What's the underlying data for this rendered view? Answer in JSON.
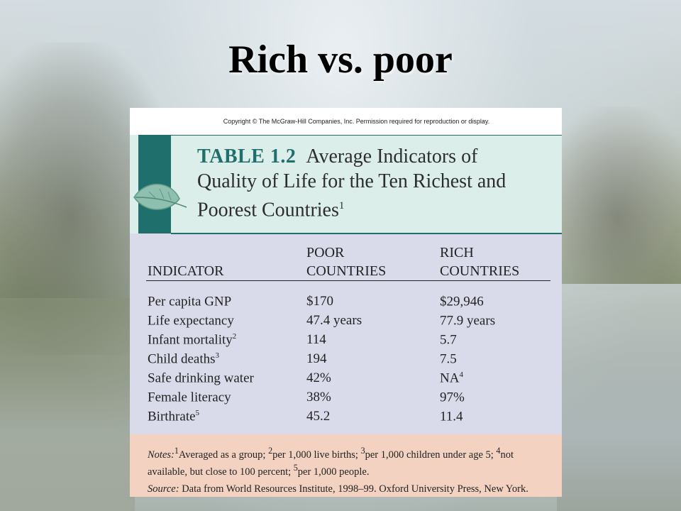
{
  "slide": {
    "title": "Rich vs. poor"
  },
  "table": {
    "copyright": "Copyright © The McGraw-Hill Companies, Inc. Permission required for reproduction or display.",
    "number": "TABLE 1.2",
    "heading_line1": "Average Indicators of",
    "heading_line2": "Quality of Life for the Ten Richest and",
    "heading_line3": "Poorest Countries",
    "heading_sup": "1",
    "columns": {
      "indicator": "INDICATOR",
      "poor_line1": "POOR",
      "poor_line2": "COUNTRIES",
      "rich_line1": "RICH",
      "rich_line2": "COUNTRIES"
    },
    "rows": [
      {
        "indicator": "Per capita GNP",
        "sup": "",
        "poor": "$170",
        "rich": "$29,946",
        "rich_sup": ""
      },
      {
        "indicator": "Life expectancy",
        "sup": "",
        "poor": "47.4 years",
        "rich": "77.9 years",
        "rich_sup": ""
      },
      {
        "indicator": "Infant mortality",
        "sup": "2",
        "poor": "114",
        "rich": "5.7",
        "rich_sup": ""
      },
      {
        "indicator": "Child deaths",
        "sup": "3",
        "poor": "194",
        "rich": "7.5",
        "rich_sup": ""
      },
      {
        "indicator": "Safe drinking water",
        "sup": "",
        "poor": "42%",
        "rich": "NA",
        "rich_sup": "4"
      },
      {
        "indicator": "Female literacy",
        "sup": "",
        "poor": "38%",
        "rich": "97%",
        "rich_sup": ""
      },
      {
        "indicator": "Birthrate",
        "sup": "5",
        "poor": "45.2",
        "rich": "11.4",
        "rich_sup": ""
      }
    ],
    "notes": {
      "label": "Notes:",
      "n1_sup": "1",
      "n1": "Averaged as a group; ",
      "n2_sup": "2",
      "n2": "per 1,000 live births; ",
      "n3_sup": "3",
      "n3": "per 1,000 children under age 5; ",
      "n4_sup": "4",
      "n4": "not available, but close to 100 percent; ",
      "n5_sup": "5",
      "n5": "per 1,000 people.",
      "source_label": "Source:",
      "source": " Data from World Resources Institute, 1998–99. Oxford University Press, New York."
    }
  },
  "colors": {
    "teal": "#1f6f6d",
    "header_band": "#dceeea",
    "table_body": "#d9dbea",
    "notes_bg": "#f4d2c2"
  },
  "icons": {
    "decoration": "leaf-icon"
  }
}
